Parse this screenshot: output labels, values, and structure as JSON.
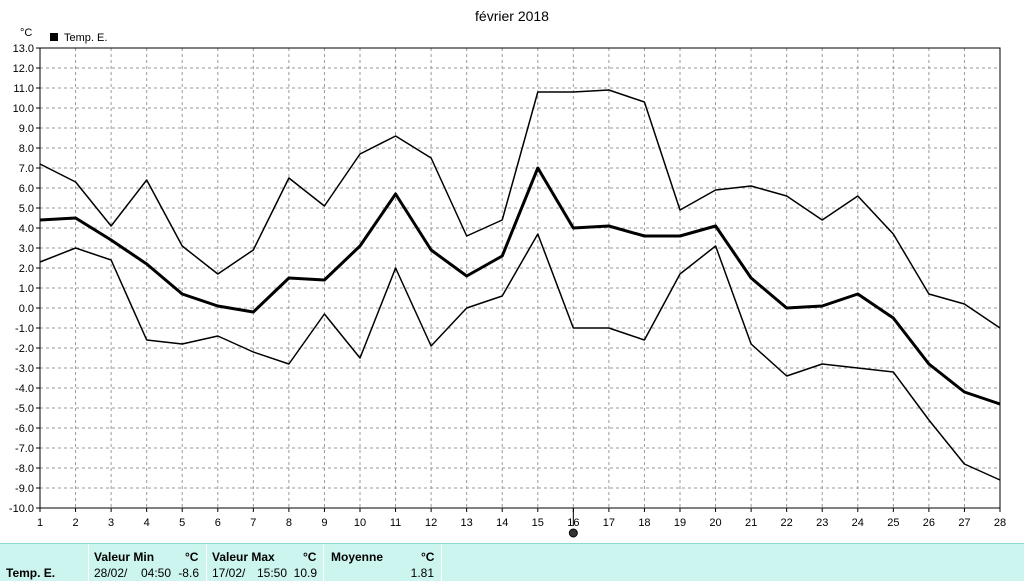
{
  "chart_data": {
    "type": "line",
    "title": "février 2018",
    "unit": "°C",
    "legend": "Temp. E.",
    "x": [
      1,
      2,
      3,
      4,
      5,
      6,
      7,
      8,
      9,
      10,
      11,
      12,
      13,
      14,
      15,
      16,
      17,
      18,
      19,
      20,
      21,
      22,
      23,
      24,
      25,
      26,
      27,
      28
    ],
    "xlim": [
      1,
      28
    ],
    "ylim": [
      -10,
      13
    ],
    "ytick_step": 1,
    "grid": true,
    "series": [
      {
        "role": "max",
        "values": [
          7.2,
          6.3,
          4.1,
          6.4,
          3.1,
          1.7,
          2.9,
          6.5,
          5.1,
          7.7,
          8.6,
          7.5,
          3.6,
          4.4,
          10.8,
          10.8,
          10.9,
          10.3,
          4.9,
          5.9,
          6.1,
          5.6,
          4.4,
          5.6,
          3.7,
          0.7,
          0.2,
          -1.0
        ]
      },
      {
        "role": "mean",
        "values": [
          4.4,
          4.5,
          3.4,
          2.2,
          0.7,
          0.1,
          -0.2,
          1.5,
          1.4,
          3.1,
          5.7,
          2.9,
          1.6,
          2.6,
          7.0,
          4.0,
          4.1,
          3.6,
          3.6,
          4.1,
          1.5,
          0.0,
          0.1,
          0.7,
          -0.5,
          -2.8,
          -4.2,
          -4.8
        ]
      },
      {
        "role": "min",
        "values": [
          2.3,
          3.0,
          2.4,
          -1.6,
          -1.8,
          -1.4,
          -2.2,
          -2.8,
          -0.3,
          -2.5,
          2.0,
          -1.9,
          0.0,
          0.6,
          3.7,
          -1.0,
          -1.0,
          -1.6,
          1.7,
          3.1,
          -1.8,
          -3.4,
          -2.8,
          -3.0,
          -3.2,
          -5.6,
          -7.8,
          -8.6
        ]
      }
    ],
    "marker_day": 16,
    "colors": {
      "line": "#000000",
      "grid": "#9a9a9a",
      "stats_bg": "#ccf5f0"
    }
  },
  "stats": {
    "row_label": "Temp. E.",
    "min_header": "Valeur Min",
    "max_header": "Valeur Max",
    "mean_header": "Moyenne",
    "unit": "°C",
    "min_date": "28/02/",
    "min_time": "04:50",
    "min_value": "-8.6",
    "max_date": "17/02/",
    "max_time": "15:50",
    "max_value": "10.9",
    "mean_value": "1.81"
  }
}
